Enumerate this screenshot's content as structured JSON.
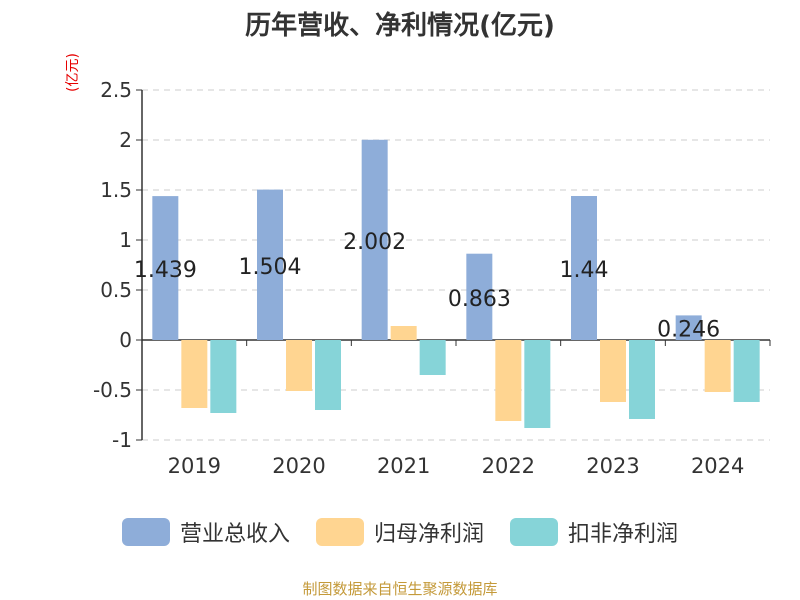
{
  "chart_data": {
    "type": "bar",
    "title": "历年营收、净利情况(亿元)",
    "unit_label": "(亿元)",
    "categories": [
      "2019",
      "2020",
      "2021",
      "2022",
      "2023",
      "2024"
    ],
    "series": [
      {
        "name": "营业总收入",
        "color": "#8eadd9",
        "values": [
          1.439,
          1.504,
          2.002,
          0.863,
          1.44,
          0.246
        ],
        "data_labels": [
          "1.439",
          "1.504",
          "2.002",
          "0.863",
          "1.44",
          "0.246"
        ]
      },
      {
        "name": "归母净利润",
        "color": "#ffd591",
        "values": [
          -0.68,
          -0.51,
          0.14,
          -0.81,
          -0.62,
          -0.52
        ]
      },
      {
        "name": "扣非净利润",
        "color": "#86d4d8",
        "values": [
          -0.73,
          -0.7,
          -0.35,
          -0.88,
          -0.79,
          -0.62
        ]
      }
    ],
    "ylim": [
      -1,
      2.5
    ],
    "yticks": [
      -1,
      -0.5,
      0,
      0.5,
      1,
      1.5,
      2,
      2.5
    ],
    "ytick_labels": [
      "-1",
      "-0.5",
      "0",
      "0.5",
      "1",
      "1.5",
      "2",
      "2.5"
    ],
    "grid": true,
    "legend_position": "bottom",
    "source": "制图数据来自恒生聚源数据库"
  }
}
